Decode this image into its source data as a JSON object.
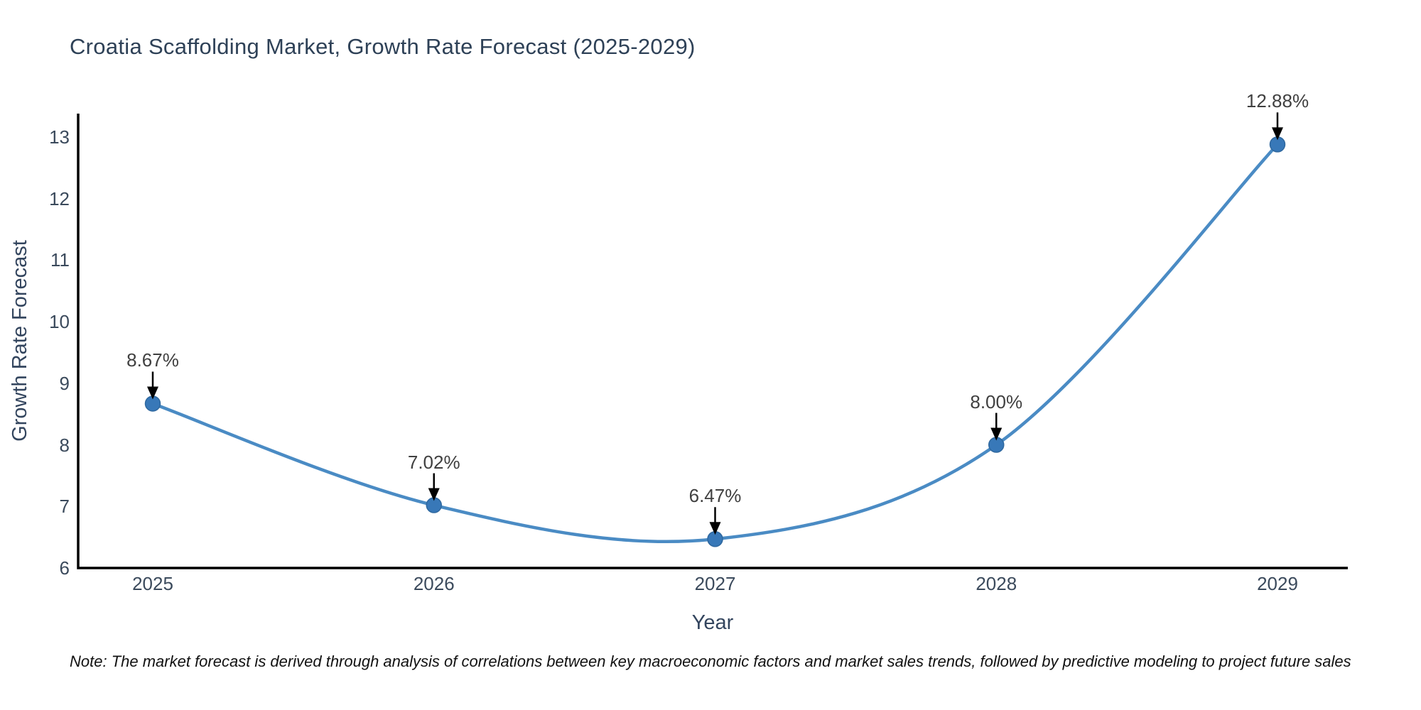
{
  "title": "Croatia Scaffolding Market, Growth Rate Forecast (2025-2029)",
  "footnote": "Note: The market forecast is derived through analysis of correlations between key macroeconomic factors and market sales trends, followed by predictive modeling to project future sales",
  "chart_data": {
    "type": "line",
    "line_shape": "spline",
    "title": "Croatia Scaffolding Market, Growth Rate Forecast (2025-2029)",
    "xlabel": "Year",
    "ylabel": "Growth Rate Forecast",
    "categories": [
      "2025",
      "2026",
      "2027",
      "2028",
      "2029"
    ],
    "values": [
      8.67,
      7.02,
      6.47,
      8.0,
      12.88
    ],
    "point_labels": [
      "8.67%",
      "7.02%",
      "6.47%",
      "8.00%",
      "12.88%"
    ],
    "yticks": [
      6,
      7,
      8,
      9,
      10,
      11,
      12,
      13
    ],
    "ylim": [
      6,
      13.38
    ],
    "grid": false,
    "legend": "none",
    "annotations": "value labels with downward arrows above each point",
    "colors": {
      "line": "#4a8bc4",
      "marker_fill": "#3878b8",
      "marker_edge": "#2f689f",
      "axis": "#000000",
      "arrow": "#000000",
      "tick_text": "#3b4a5c",
      "title_text": "#2e4157",
      "annotation_text": "#404040",
      "note_text": "#121212"
    }
  }
}
